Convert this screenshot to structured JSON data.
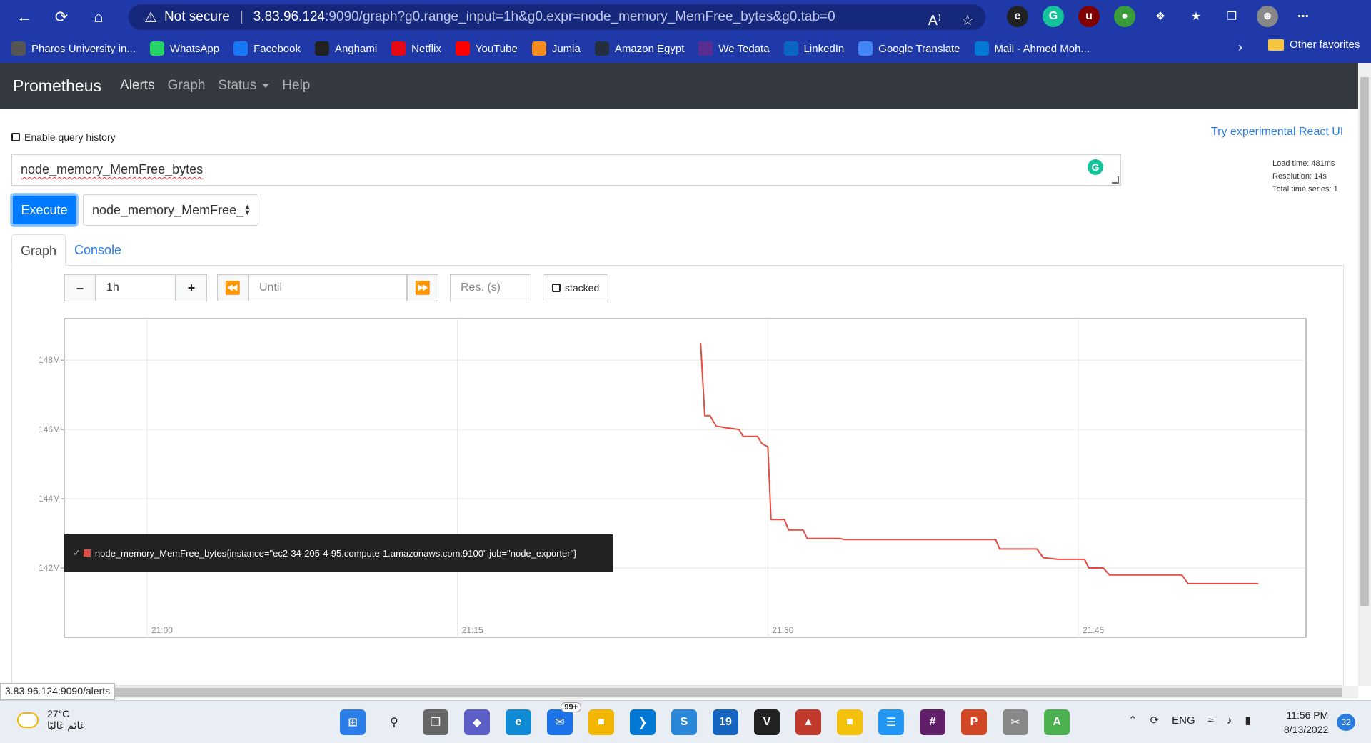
{
  "browser": {
    "not_secure": "Not secure",
    "url_host": "3.83.96.124",
    "url_path": ":9090/graph?g0.range_input=1h&g0.expr=node_memory_MemFree_bytes&g0.tab=0",
    "bookmarks": [
      {
        "label": "Pharos University in...",
        "icon": "pharos-icon",
        "color": "#555555"
      },
      {
        "label": "WhatsApp",
        "icon": "whatsapp-icon",
        "color": "#25d366"
      },
      {
        "label": "Facebook",
        "icon": "facebook-icon",
        "color": "#1877f2"
      },
      {
        "label": "Anghami",
        "icon": "anghami-icon",
        "color": "#222222"
      },
      {
        "label": "Netflix",
        "icon": "netflix-icon",
        "color": "#e50914"
      },
      {
        "label": "YouTube",
        "icon": "youtube-icon",
        "color": "#ff0000"
      },
      {
        "label": "Jumia",
        "icon": "jumia-icon",
        "color": "#f68b1e"
      },
      {
        "label": "Amazon Egypt",
        "icon": "amazon-icon",
        "color": "#232f3e"
      },
      {
        "label": "We Tedata",
        "icon": "we-icon",
        "color": "#5c2d91"
      },
      {
        "label": "LinkedIn",
        "icon": "linkedin-icon",
        "color": "#0a66c2"
      },
      {
        "label": "Google Translate",
        "icon": "translate-icon",
        "color": "#4285f4"
      },
      {
        "label": "Mail - Ahmed Moh...",
        "icon": "outlook-icon",
        "color": "#0078d4"
      }
    ],
    "other_favorites": "Other favorites"
  },
  "prometheus": {
    "brand": "Prometheus",
    "nav": {
      "alerts": "Alerts",
      "graph": "Graph",
      "status": "Status",
      "help": "Help"
    },
    "enable_history": "Enable query history",
    "react_link": "Try experimental React UI",
    "query": "node_memory_MemFree_bytes",
    "stats": {
      "load_time": "Load time: 481ms",
      "resolution": "Resolution: 14s",
      "total_series": "Total time series: 1"
    },
    "execute": "Execute",
    "metric_select": "node_memory_MemFree_",
    "tabs": {
      "graph": "Graph",
      "console": "Console"
    },
    "controls": {
      "range": "1h",
      "until_placeholder": "Until",
      "res_placeholder": "Res. (s)",
      "stacked": "stacked"
    },
    "legend": "node_memory_MemFree_bytes{instance=\"ec2-34-205-4-95.compute-1.amazonaws.com:9100\",job=\"node_exporter\"}",
    "status_url": "3.83.96.124:9090/alerts"
  },
  "chart_data": {
    "type": "line",
    "x_tick_labels": [
      "21:00",
      "21:15",
      "21:30",
      "21:45"
    ],
    "y_tick_labels": [
      "148M",
      "146M",
      "144M",
      "142M"
    ],
    "y_ticks": [
      148,
      146,
      144,
      142
    ],
    "x_ticks": [
      0,
      15,
      30,
      45
    ],
    "xlim": [
      -4,
      56
    ],
    "ylim": [
      140.0,
      149.2
    ],
    "series": [
      {
        "color": "#e24d42",
        "points": [
          [
            26.75,
            148.5
          ],
          [
            26.95,
            146.4
          ],
          [
            27.2,
            146.4
          ],
          [
            27.5,
            146.1
          ],
          [
            28.0,
            146.05
          ],
          [
            28.6,
            146.0
          ],
          [
            28.8,
            145.8
          ],
          [
            29.5,
            145.8
          ],
          [
            29.7,
            145.6
          ],
          [
            30.0,
            145.5
          ],
          [
            30.15,
            143.4
          ],
          [
            30.8,
            143.4
          ],
          [
            31.0,
            143.1
          ],
          [
            31.7,
            143.1
          ],
          [
            31.9,
            142.85
          ],
          [
            33.5,
            142.85
          ],
          [
            33.7,
            142.82
          ],
          [
            41.0,
            142.82
          ],
          [
            41.2,
            142.55
          ],
          [
            43.0,
            142.55
          ],
          [
            43.3,
            142.3
          ],
          [
            44.0,
            142.25
          ],
          [
            45.3,
            142.25
          ],
          [
            45.5,
            142.0
          ],
          [
            46.2,
            142.0
          ],
          [
            46.5,
            141.8
          ],
          [
            50.0,
            141.8
          ],
          [
            50.3,
            141.55
          ],
          [
            53.7,
            141.55
          ]
        ]
      }
    ]
  },
  "taskbar": {
    "temperature": "27°C",
    "weather_text": "غائم غالبًا",
    "mail_badge": "99+",
    "calendar_day": "19",
    "lang": "ENG",
    "time": "11:56 PM",
    "date": "8/13/2022",
    "notifications": "32"
  }
}
